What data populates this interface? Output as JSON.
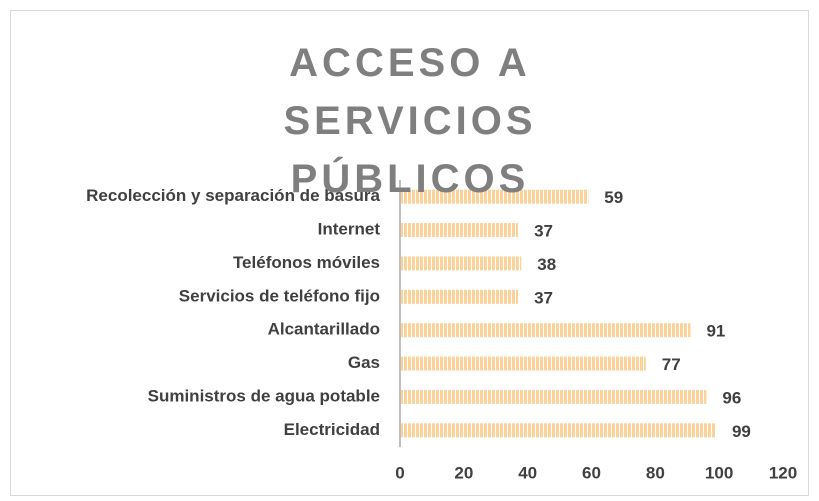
{
  "chart_data": {
    "type": "barh",
    "title": "ACCESO A SERVICIOS PÚBLICOS",
    "categories": [
      "Recolección y separación de basura",
      "Internet",
      "Teléfonos móviles",
      "Servicios de teléfono fijo",
      "Alcantarillado",
      "Gas",
      "Suministros de agua potable",
      "Electricidad"
    ],
    "values": [
      59,
      37,
      38,
      37,
      91,
      77,
      96,
      99
    ],
    "color": "#fbd29a",
    "xlim": [
      0,
      120
    ],
    "xticks": [
      0,
      20,
      40,
      60,
      80,
      100,
      120
    ],
    "grid": false
  }
}
